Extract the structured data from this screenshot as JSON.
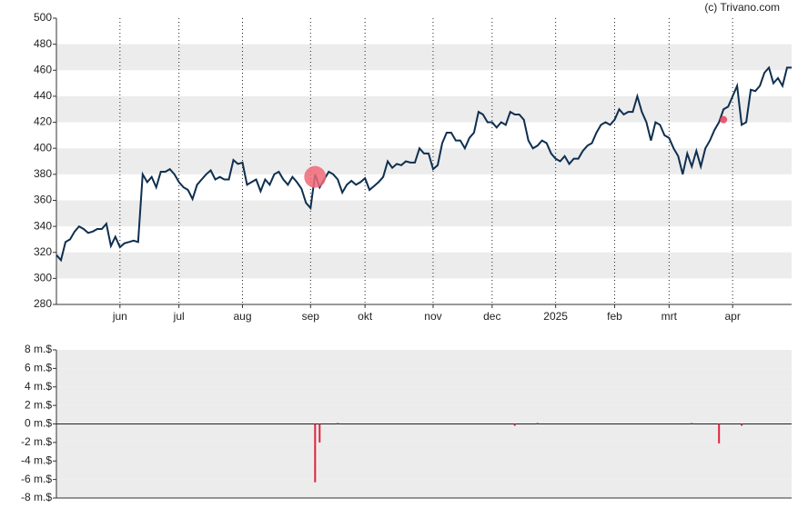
{
  "chart_data": [
    {
      "type": "line",
      "credit": "(c) Trivano.com",
      "color": "#0e2f4f",
      "values": [
        318,
        314,
        328,
        330,
        336,
        340,
        338,
        335,
        336,
        338,
        338,
        342,
        325,
        332,
        324,
        327,
        328,
        329,
        328,
        380,
        374,
        378,
        370,
        382,
        382,
        384,
        380,
        374,
        370,
        368,
        361,
        372,
        376,
        380,
        383,
        376,
        378,
        376,
        376,
        391,
        388,
        389,
        372,
        374,
        376,
        367,
        376,
        372,
        380,
        382,
        376,
        372,
        378,
        374,
        369,
        358,
        354,
        380,
        370,
        376,
        382,
        380,
        376,
        366,
        372,
        375,
        372,
        374,
        377,
        368,
        371,
        374,
        378,
        390,
        385,
        388,
        387,
        390,
        389,
        389,
        400,
        396,
        396,
        384,
        387,
        404,
        412,
        412,
        406,
        406,
        400,
        408,
        412,
        428,
        426,
        420,
        420,
        416,
        420,
        418,
        428,
        426,
        426,
        422,
        406,
        400,
        402,
        406,
        404,
        396,
        392,
        390,
        394,
        388,
        392,
        392,
        398,
        402,
        404,
        412,
        418,
        420,
        418,
        422,
        430,
        426,
        428,
        428,
        440,
        428,
        420,
        406,
        420,
        418,
        410,
        408,
        400,
        394,
        380,
        396,
        386,
        398,
        386,
        400,
        406,
        414,
        420,
        430,
        432,
        440,
        448,
        418,
        420,
        445,
        444,
        448,
        458,
        462,
        450,
        454,
        448,
        462,
        462
      ],
      "xlim": [
        0,
        162
      ],
      "xticks": [
        {
          "value": 14,
          "label": "jun"
        },
        {
          "value": 27,
          "label": "jul"
        },
        {
          "value": 41,
          "label": "aug"
        },
        {
          "value": 56,
          "label": "sep"
        },
        {
          "value": 68,
          "label": "okt"
        },
        {
          "value": 83,
          "label": "nov"
        },
        {
          "value": 96,
          "label": "dec"
        },
        {
          "value": 110,
          "label": "2025"
        },
        {
          "value": 123,
          "label": "feb"
        },
        {
          "value": 135,
          "label": "mrt"
        },
        {
          "value": 149,
          "label": "apr"
        }
      ],
      "ylim": [
        280,
        500
      ],
      "yticks": [
        280,
        300,
        320,
        340,
        360,
        380,
        400,
        420,
        440,
        460,
        480,
        500
      ],
      "markers": [
        {
          "x": 57,
          "y": 378,
          "color": "#f06878"
        },
        {
          "x": 147,
          "y": 422,
          "color": "#e8405a"
        }
      ]
    },
    {
      "type": "bar",
      "color_negative": "#e0243c",
      "color_positive": "#1f7a5c",
      "bars": [
        {
          "x": 57,
          "value": -6.3
        },
        {
          "x": 58,
          "value": -2.0
        },
        {
          "x": 62,
          "value": 0.1
        },
        {
          "x": 101,
          "value": -0.2
        },
        {
          "x": 106,
          "value": 0.1
        },
        {
          "x": 140,
          "value": 0.1
        },
        {
          "x": 146,
          "value": -2.1
        },
        {
          "x": 151,
          "value": -0.2
        }
      ],
      "xlim": [
        0,
        162
      ],
      "ylim": [
        -8,
        8
      ],
      "yticks": [
        {
          "value": -8,
          "label": "-8 m.$"
        },
        {
          "value": -6,
          "label": "-6 m.$"
        },
        {
          "value": -4,
          "label": "-4 m.$"
        },
        {
          "value": -2,
          "label": "-2 m.$"
        },
        {
          "value": 0,
          "label": "0 m.$"
        },
        {
          "value": 2,
          "label": "2 m.$"
        },
        {
          "value": 4,
          "label": "4 m.$"
        },
        {
          "value": 6,
          "label": "6 m.$"
        },
        {
          "value": 8,
          "label": "8 m.$"
        }
      ]
    }
  ]
}
